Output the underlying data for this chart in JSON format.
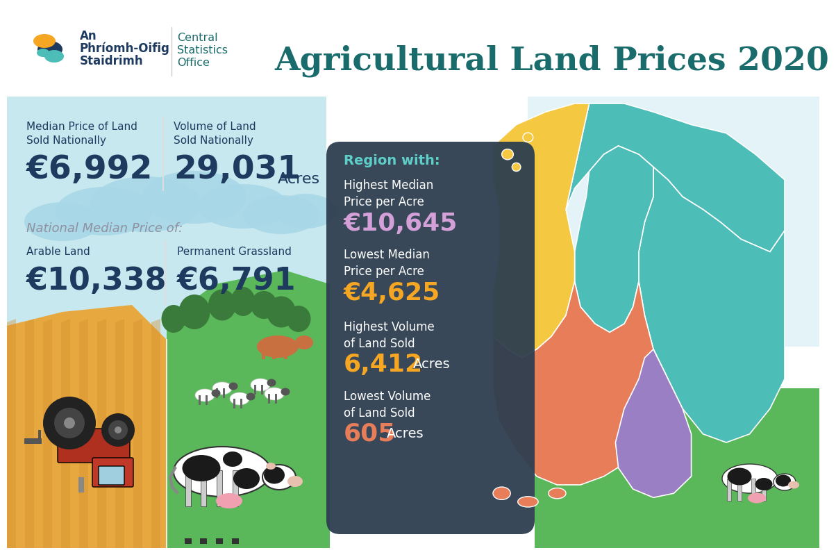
{
  "title": "Agricultural Land Prices 2020",
  "title_color": "#1a6b6b",
  "bg_color": "#ffffff",
  "logo_irish": "An\nPhríomh-Oifig\nStaidrimh",
  "logo_english": "Central\nStatistics\nOffice",
  "logo_color": "#1a6b6b",
  "logo_dark": "#1e3a5f",
  "median_price_label": "Median Price of Land\nSold Nationally",
  "median_price_value": "€6,992",
  "volume_label": "Volume of Land\nSold Nationally",
  "volume_value": "29,031",
  "volume_unit": "Acres",
  "national_median_label": "National Median Price of:",
  "arable_label": "Arable Land",
  "arable_value": "€10,338",
  "grassland_label": "Permanent Grassland",
  "grassland_value": "€6,791",
  "region_with": "Region with:",
  "region_label_color": "#5ecfc8",
  "highest_median_label": "Highest Median\nPrice per Acre",
  "highest_median_value": "€10,645",
  "highest_median_color": "#d4a0d8",
  "lowest_median_label": "Lowest Median\nPrice per Acre",
  "lowest_median_value": "€4,625",
  "lowest_median_color": "#f5a623",
  "highest_volume_label": "Highest Volume\nof Land Sold",
  "highest_volume_value": "6,412",
  "highest_volume_unit": "Acres",
  "highest_volume_color": "#f5a623",
  "lowest_volume_label": "Lowest Volume\nof Land Sold",
  "lowest_volume_value": "605",
  "lowest_volume_unit": "Acres",
  "lowest_volume_color": "#e87d5a",
  "dark_text": "#1e3a5f",
  "white_text": "#ffffff",
  "gray_text": "#9090a0",
  "panel_bg": "#2d3e50",
  "sky_color": "#c8e8f0",
  "cloud_color": "#a8d8e8",
  "field_gold": "#e8a840",
  "field_stripe": "#d49030",
  "grass_green": "#5ab85a",
  "dark_green": "#3a7a3a",
  "tree_trunk": "#6a4020",
  "map_teal": "#4dbdb8",
  "map_yellow": "#f5c842",
  "map_orange": "#e87d5a",
  "map_purple": "#9b7fc4",
  "map_edge": "#ffffff",
  "right_sky": "#c8e8f0",
  "right_grass": "#5ab85a"
}
